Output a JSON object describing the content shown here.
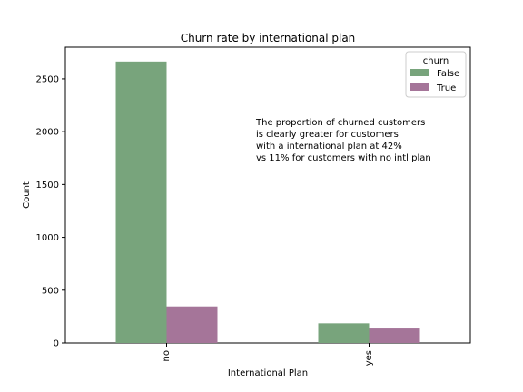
{
  "chart_data": {
    "type": "bar",
    "title": "Churn rate by international plan",
    "xlabel": "International Plan",
    "ylabel": "Count",
    "categories": [
      "no",
      "yes"
    ],
    "series": [
      {
        "name": "False",
        "values": [
          2664,
          186
        ],
        "color": "#78a47c"
      },
      {
        "name": "True",
        "values": [
          346,
          137
        ],
        "color": "#a57599"
      }
    ],
    "ylim": [
      0,
      2800
    ],
    "yticks": [
      0,
      500,
      1000,
      1500,
      2000,
      2500
    ],
    "grid": false,
    "legend": {
      "title": "churn",
      "placement": "top-right"
    },
    "annotation": [
      "The proportion of churned customers",
      "is clearly greater for customers",
      "with a international plan at 42%",
      "vs 11% for customers with no intl plan"
    ]
  }
}
